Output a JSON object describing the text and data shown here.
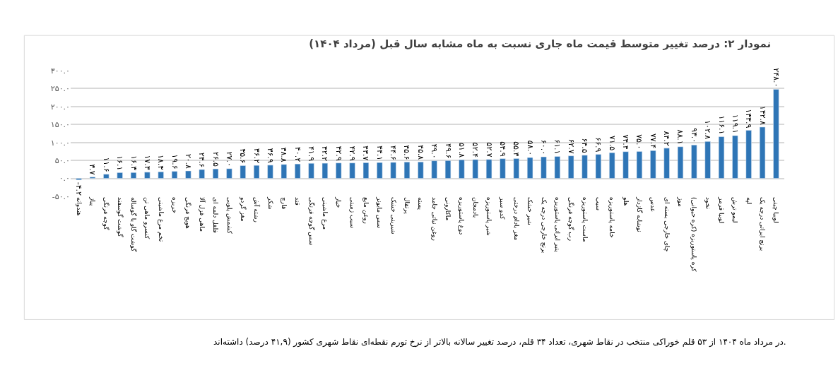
{
  "chart_data": {
    "type": "bar",
    "title": "نمودار ۲: درصد تغییر متوسط قیمت ماه جاری نسبت به ماه مشابه سال قبل (مرداد ۱۴۰۴)",
    "annotations": [
      "در مرداد ماه ۱۴۰۴ از ۵۳ قلم خوراکی منتخب در نقاط شهری، تعداد ۳۴ قلم، درصد تغییر سالانه بالاتر از نرخ تورم نقطه‌ای نقاط شهری کشور (۴۱,۹ درصد) داشته‌اند."
    ],
    "categories": [
      "هندوانه",
      "پیاز",
      "گوجه فرنگی",
      "گوشت گوسفند",
      "گوشت گاو یا گوساله",
      "کنسرو ماهی تن",
      "تخم مرغ ماشینی",
      "خربزه",
      "هویج فرنگی",
      "ماهی قزل آلا",
      "فلفل دلمه ای",
      "کشمش پلویی",
      "مغز گردو",
      "رشته آش",
      "شکر",
      "قارچ",
      "قند",
      "سس گوجه فرنگی",
      "مرغ ماشینی",
      "خیار",
      "سیب زمینی",
      "روغن مایع",
      "سس مایونز",
      "شیرینی خشک",
      "پرتقال",
      "پسته",
      "روغن نباتی جامد",
      "ماکارونی",
      "دوغ پاستوریزه",
      "بادمجان",
      "شیر پاستوریزه",
      "کدو سبز",
      "مغز بادام درختی",
      "شیر خشک",
      "برنج خارجی درجه یک",
      "پنیر ایرانی پاستوریزه",
      "رب گوجه فرنگی",
      "ماست پاستوریزه",
      "سیب",
      "خامه پاستوریزه",
      "هلو",
      "نوشابه گازدار",
      "عدس",
      "چای خارجی بسته ای",
      "موز",
      "کره پاستوریزه (کره حیوانی)",
      "نخود",
      "لوبیا قرمز",
      "لیمو ترش",
      "لپه",
      "برنج ایرانی درجه یک",
      "لوبیا چیتی"
    ],
    "values": [
      -4.2,
      3.7,
      11.6,
      16.1,
      16.3,
      17.3,
      18.3,
      19.6,
      20.8,
      24.6,
      26.5,
      27.0,
      35.6,
      36.2,
      36.9,
      38.8,
      40.2,
      41.9,
      42.2,
      42.9,
      42.9,
      43.7,
      44.1,
      44.6,
      45.6,
      45.8,
      49.0,
      49.6,
      51.8,
      52.4,
      52.7,
      54.9,
      55.3,
      58.0,
      60.0,
      61.1,
      62.7,
      64.5,
      66.9,
      71.5,
      74.4,
      75.0,
      77.4,
      84.2,
      88.1,
      93.0,
      102.8,
      116.1,
      119.1,
      133.9,
      142.8,
      248.0
    ],
    "value_labels": [
      "-۴.۲",
      "۳.۷",
      "۱۱.۶",
      "۱۶.۱",
      "۱۶.۳",
      "۱۷.۳",
      "۱۸.۳",
      "۱۹.۶",
      "۲۰.۸",
      "۲۴.۶",
      "۲۶.۵",
      "۲۷.۰",
      "۳۵.۶",
      "۳۶.۲",
      "۳۶.۹",
      "۳۸.۸",
      "۴۰.۲",
      "۴۱.۹",
      "۴۲.۲",
      "۴۲.۹",
      "۴۲.۹",
      "۴۳.۷",
      "۴۴.۱",
      "۴۴.۶",
      "۴۵.۶",
      "۴۵.۸",
      "۴۹.۰",
      "۴۹.۶",
      "۵۱.۸",
      "۵۲.۴",
      "۵۲.۷",
      "۵۴.۹",
      "۵۵.۳",
      "۵۸.۰",
      "۶۰.۰",
      "۶۱.۱",
      "۶۲.۷",
      "۶۴.۵",
      "۶۶.۹",
      "۷۱.۵",
      "۷۴.۴",
      "۷۵.۰",
      "۷۷.۴",
      "۸۴.۲",
      "۸۸.۱",
      "۹۳.۰",
      "۱۰۲.۸",
      "۱۱۶.۱",
      "۱۱۹.۱",
      "۱۳۳.۹",
      "۱۴۲.۸",
      "۲۴۸.۰"
    ],
    "color": "#2e75b6",
    "ylim": [
      -50,
      300
    ],
    "yticks": [
      {
        "value": -50,
        "label": "-۵۰.۰"
      },
      {
        "value": 0,
        "label": "۰.۰"
      },
      {
        "value": 50,
        "label": "۵۰.۰"
      },
      {
        "value": 100,
        "label": "۱۰۰.۰"
      },
      {
        "value": 150,
        "label": "۱۵۰.۰"
      },
      {
        "value": 200,
        "label": "۲۰۰.۰"
      },
      {
        "value": 250,
        "label": "۲۵۰.۰"
      },
      {
        "value": 300,
        "label": "۳۰۰.۰"
      }
    ],
    "grid": "y"
  }
}
